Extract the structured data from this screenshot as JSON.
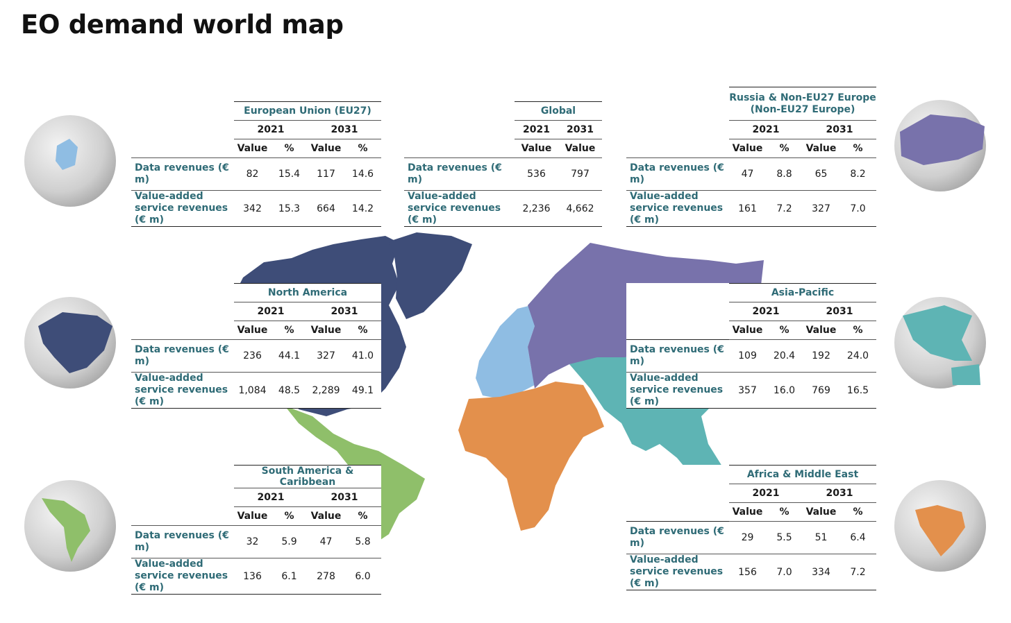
{
  "page": {
    "title": "EO demand world map"
  },
  "colors": {
    "north_america": "#3e4d78",
    "south_america": "#8fbf6a",
    "europe": "#8fbde3",
    "russia": "#7872ab",
    "africa_me": "#e3904c",
    "asia_pacific": "#5eb4b4",
    "label": "#2f6b76"
  },
  "tables": {
    "eu": {
      "title": "European Union (EU27)",
      "years": [
        "2021",
        "2031"
      ],
      "subheads": [
        "Value",
        "%",
        "Value",
        "%"
      ],
      "rows": [
        {
          "label": "Data revenues (€ m)",
          "values": [
            "82",
            "15.4",
            "117",
            "14.6"
          ]
        },
        {
          "label": "Value-added service revenues (€ m)",
          "values": [
            "342",
            "15.3",
            "664",
            "14.2"
          ]
        }
      ]
    },
    "global": {
      "title": "Global",
      "years": [
        "2021",
        "2031"
      ],
      "subheads": [
        "Value",
        "Value"
      ],
      "rows": [
        {
          "label": "Data revenues (€ m)",
          "values": [
            "536",
            "797"
          ]
        },
        {
          "label": "Value-added service revenues (€ m)",
          "values": [
            "2,236",
            "4,662"
          ]
        }
      ]
    },
    "russia": {
      "title": "Russia & Non-EU27 Europe (Non-EU27 Europe)",
      "years": [
        "2021",
        "2031"
      ],
      "subheads": [
        "Value",
        "%",
        "Value",
        "%"
      ],
      "rows": [
        {
          "label": "Data revenues (€ m)",
          "values": [
            "47",
            "8.8",
            "65",
            "8.2"
          ]
        },
        {
          "label": "Value-added service revenues (€ m)",
          "values": [
            "161",
            "7.2",
            "327",
            "7.0"
          ]
        }
      ]
    },
    "north_america": {
      "title": "North America",
      "years": [
        "2021",
        "2031"
      ],
      "subheads": [
        "Value",
        "%",
        "Value",
        "%"
      ],
      "rows": [
        {
          "label": "Data revenues (€ m)",
          "values": [
            "236",
            "44.1",
            "327",
            "41.0"
          ]
        },
        {
          "label": "Value-added service revenues (€ m)",
          "values": [
            "1,084",
            "48.5",
            "2,289",
            "49.1"
          ]
        }
      ]
    },
    "asia_pacific": {
      "title": "Asia-Pacific",
      "years": [
        "2021",
        "2031"
      ],
      "subheads": [
        "Value",
        "%",
        "Value",
        "%"
      ],
      "rows": [
        {
          "label": "Data revenues (€ m)",
          "values": [
            "109",
            "20.4",
            "192",
            "24.0"
          ]
        },
        {
          "label": "Value-added service revenues (€ m)",
          "values": [
            "357",
            "16.0",
            "769",
            "16.5"
          ]
        }
      ]
    },
    "south_america": {
      "title": "South America & Caribbean",
      "years": [
        "2021",
        "2031"
      ],
      "subheads": [
        "Value",
        "%",
        "Value",
        "%"
      ],
      "rows": [
        {
          "label": "Data revenues (€ m)",
          "values": [
            "32",
            "5.9",
            "47",
            "5.8"
          ]
        },
        {
          "label": "Value-added service revenues (€ m)",
          "values": [
            "136",
            "6.1",
            "278",
            "6.0"
          ]
        }
      ]
    },
    "africa_me": {
      "title": "Africa & Middle East",
      "years": [
        "2021",
        "2031"
      ],
      "subheads": [
        "Value",
        "%",
        "Value",
        "%"
      ],
      "rows": [
        {
          "label": "Data revenues (€ m)",
          "values": [
            "29",
            "5.5",
            "51",
            "6.4"
          ]
        },
        {
          "label": "Value-added service revenues (€ m)",
          "values": [
            "156",
            "7.0",
            "334",
            "7.2"
          ]
        }
      ]
    }
  }
}
